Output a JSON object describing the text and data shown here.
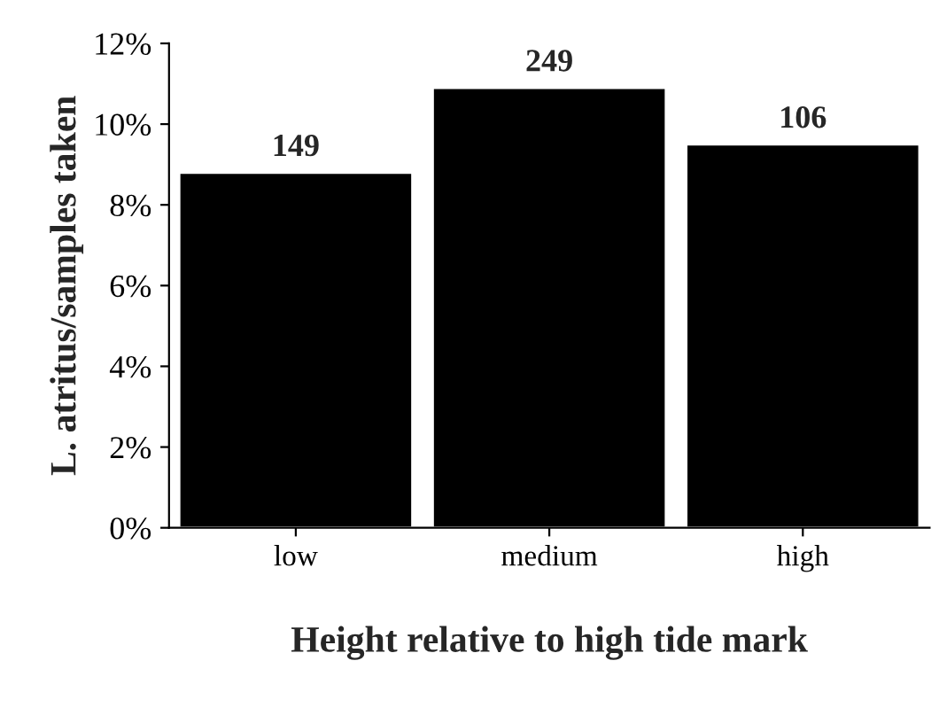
{
  "chart_data": {
    "type": "bar",
    "xlabel": "Height relative to high tide mark",
    "ylabel": "L. atritus/samples taken",
    "categories": [
      "low",
      "medium",
      "high"
    ],
    "values": [
      8.8,
      10.9,
      9.5
    ],
    "annotations": [
      {
        "text": "149",
        "x": "low",
        "y": 8.8
      },
      {
        "text": "249",
        "x": "medium",
        "y": 10.9
      },
      {
        "text": "106",
        "x": "high",
        "y": 9.5
      }
    ],
    "color": "#000000",
    "ylim": [
      0,
      12
    ],
    "yticks": [
      {
        "value": 0,
        "label": "0%"
      },
      {
        "value": 2,
        "label": "2%"
      },
      {
        "value": 4,
        "label": "4%"
      },
      {
        "value": 6,
        "label": "6%"
      },
      {
        "value": 8,
        "label": "8%"
      },
      {
        "value": 10,
        "label": "10%"
      },
      {
        "value": 12,
        "label": "12%"
      }
    ],
    "grid": false,
    "legend": false
  }
}
